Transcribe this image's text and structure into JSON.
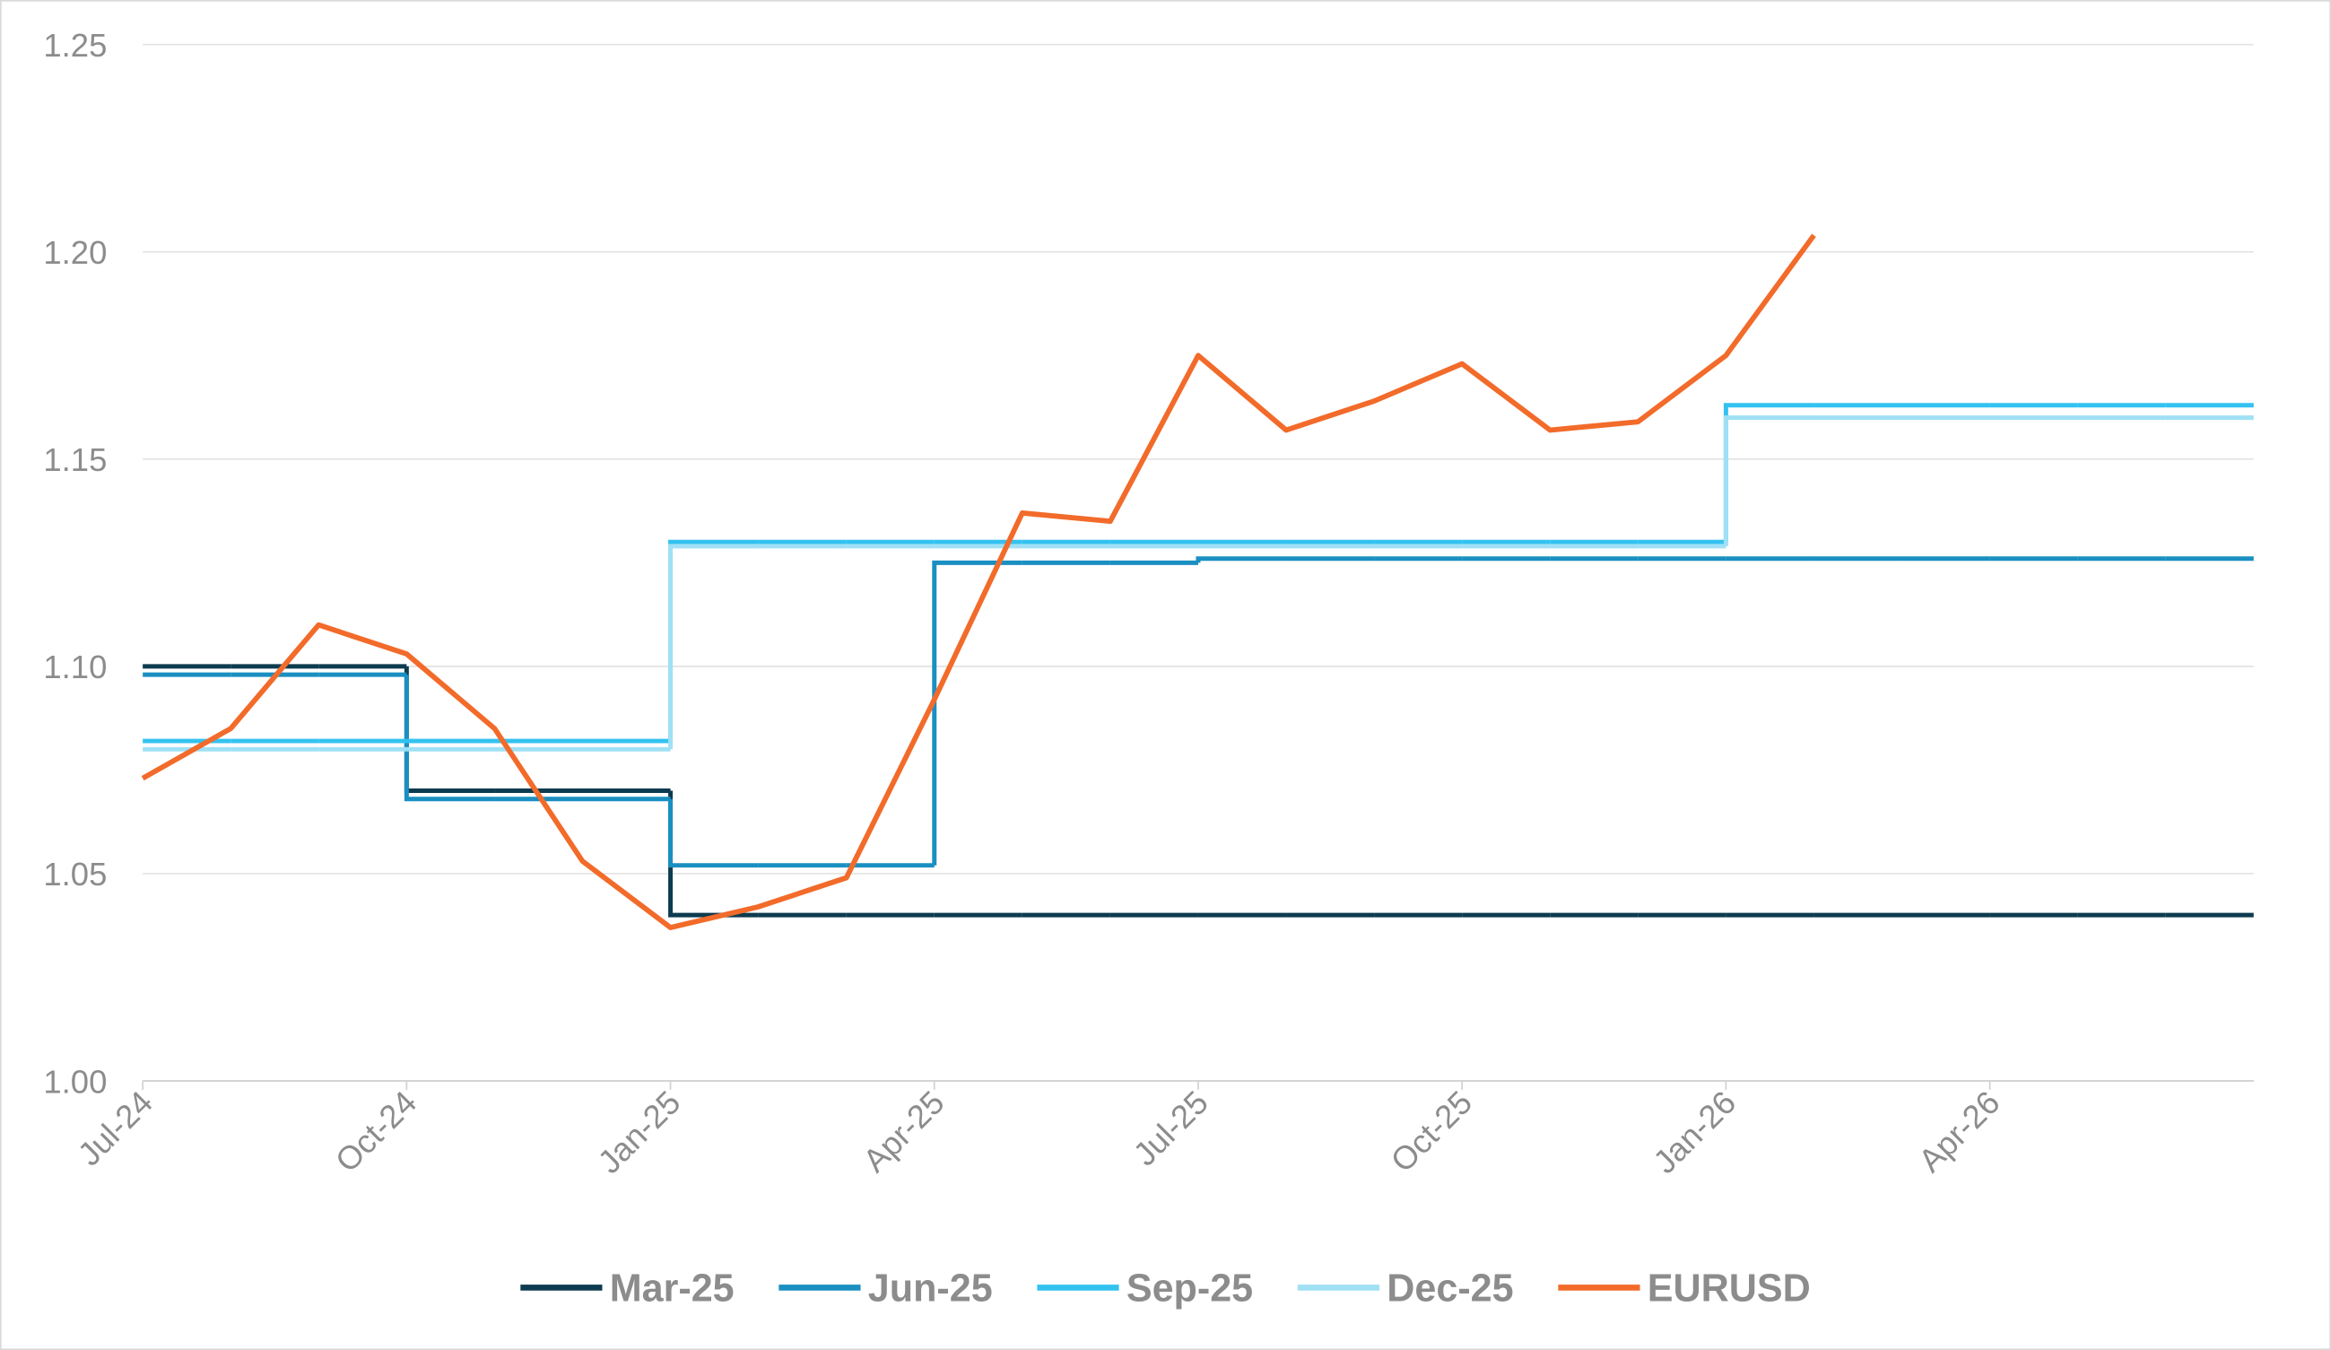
{
  "chart_data": {
    "type": "line",
    "categories": [
      "Jul-24",
      null,
      null,
      "Oct-24",
      null,
      null,
      "Jan-25",
      null,
      null,
      "Apr-25",
      null,
      null,
      "Jul-25",
      null,
      null,
      "Oct-25",
      null,
      null,
      "Jan-26",
      null,
      null,
      "Apr-26",
      null,
      null,
      null
    ],
    "ylim": [
      1.0,
      1.25
    ],
    "yticks": [
      {
        "value": 1.0,
        "label": "1.00"
      },
      1.05,
      {
        "value": 1.1,
        "label": "1.10"
      },
      1.15,
      {
        "value": 1.2,
        "label": "1.20"
      },
      1.25
    ],
    "grid": true,
    "legend": "bottom",
    "series": [
      {
        "name": "Mar-25",
        "color": "#0d3b4f",
        "step": true,
        "values": [
          1.1,
          1.1,
          1.1,
          1.07,
          1.07,
          1.07,
          1.04,
          1.04,
          1.04,
          1.04,
          1.04,
          1.04,
          1.04,
          1.04,
          1.04,
          1.04,
          1.04,
          1.04,
          1.04,
          1.04,
          1.04,
          1.04,
          1.04,
          1.04,
          1.04
        ]
      },
      {
        "name": "Jun-25",
        "color": "#1a8fc1",
        "step": true,
        "values": [
          1.098,
          1.098,
          1.098,
          1.068,
          1.068,
          1.068,
          1.052,
          1.052,
          1.052,
          1.125,
          1.125,
          1.125,
          1.126,
          1.126,
          1.126,
          1.126,
          1.126,
          1.126,
          1.126,
          1.126,
          1.126,
          1.126,
          1.126,
          1.126,
          1.126
        ]
      },
      {
        "name": "Sep-25",
        "color": "#33c2f0",
        "step": true,
        "values": [
          1.082,
          1.082,
          1.082,
          1.082,
          1.082,
          1.082,
          1.13,
          1.13,
          1.13,
          1.13,
          1.13,
          1.13,
          1.13,
          1.13,
          1.13,
          1.13,
          1.13,
          1.13,
          1.163,
          1.163,
          1.163,
          1.163,
          1.163,
          1.163,
          1.163
        ]
      },
      {
        "name": "Dec-25",
        "color": "#9fe0f5",
        "step": true,
        "values": [
          1.08,
          1.08,
          1.08,
          1.08,
          1.08,
          1.08,
          1.129,
          1.129,
          1.129,
          1.129,
          1.129,
          1.129,
          1.129,
          1.129,
          1.129,
          1.129,
          1.129,
          1.129,
          1.16,
          1.16,
          1.16,
          1.16,
          1.16,
          1.16,
          1.16
        ]
      },
      {
        "name": "EURUSD",
        "color": "#f26b2a",
        "step": false,
        "values": [
          1.073,
          1.085,
          1.11,
          1.103,
          1.085,
          1.053,
          1.037,
          1.042,
          1.049,
          1.092,
          1.137,
          1.135,
          1.175,
          1.157,
          1.164,
          1.173,
          1.157,
          1.159,
          1.175,
          1.204,
          null,
          null,
          null,
          null,
          null
        ]
      }
    ]
  }
}
